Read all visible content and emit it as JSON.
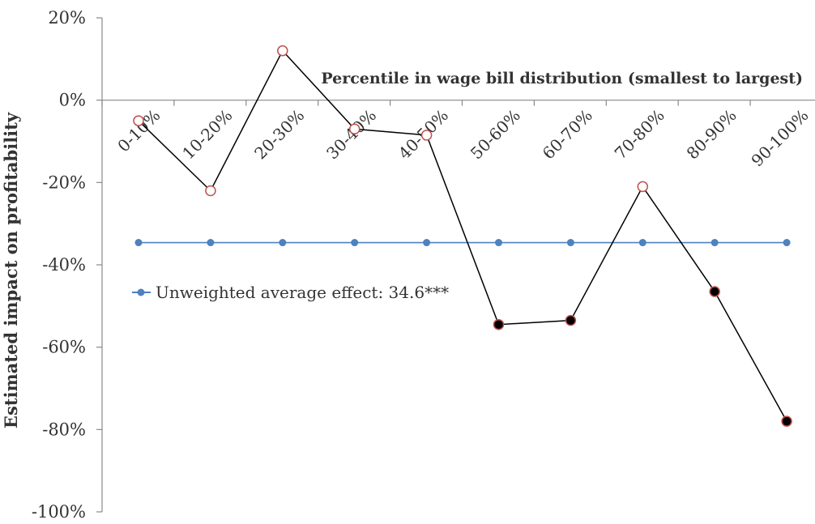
{
  "chart_data": {
    "type": "line",
    "title": "",
    "xlabel": "Percentile in wage bill distribution (smallest to largest)",
    "ylabel": "Estimated impact on profitability",
    "ylim": [
      -100,
      20
    ],
    "yticks": [
      "20%",
      "0%",
      "-20%",
      "-40%",
      "-60%",
      "-80%",
      "-100%"
    ],
    "ytick_values": [
      20,
      0,
      -20,
      -40,
      -60,
      -80,
      -100
    ],
    "categories": [
      "0-10%",
      "10-20%",
      "20-30%",
      "30-40%",
      "40-50%",
      "50-60%",
      "60-70%",
      "70-80%",
      "80-90%",
      "90-100%"
    ],
    "series": [
      {
        "values": [
          -5,
          -22,
          12,
          -7,
          -8.5,
          -54.5,
          -53.5,
          -21,
          -46.5,
          -78
        ],
        "significant": [
          false,
          false,
          false,
          false,
          false,
          true,
          true,
          false,
          true,
          true
        ],
        "color": "#000000",
        "open_marker_color": "#c0504d"
      },
      {
        "name": "Unweighted average effect: 34.6***",
        "values": [
          -34.6,
          -34.6,
          -34.6,
          -34.6,
          -34.6,
          -34.6,
          -34.6,
          -34.6,
          -34.6,
          -34.6
        ],
        "color": "#4f81bd"
      }
    ],
    "legend": {
      "placement": "left-middle",
      "label": "Unweighted average effect: 34.6***"
    },
    "grid": false
  }
}
